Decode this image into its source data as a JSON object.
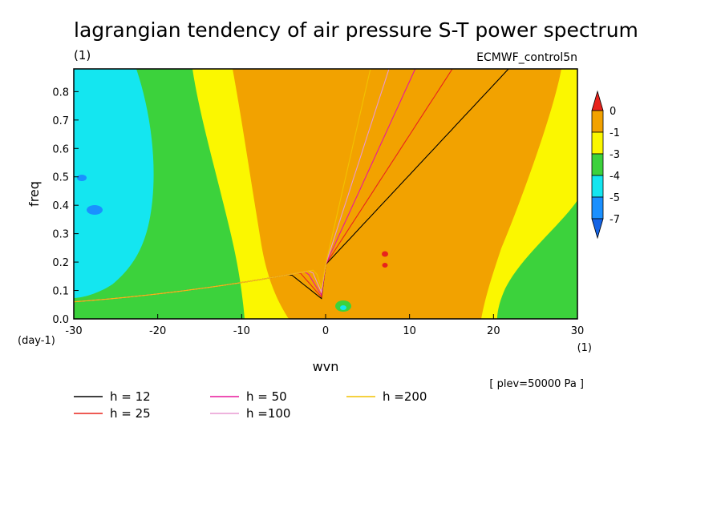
{
  "chart_data": {
    "type": "heatmap",
    "title": "lagrangian tendency of air pressure S-T power spectrum",
    "units_label": "(1)",
    "model_label": "ECMWF_control5n",
    "xlabel": "wvn",
    "x_units": "(1)",
    "ylabel": "freq",
    "y_units": "(day-1)",
    "level_note": "[ plev=50000 Pa ]",
    "xlim": [
      -30,
      30
    ],
    "ylim": [
      0,
      0.88
    ],
    "x_ticks": [
      "-30",
      "-20",
      "-10",
      "0",
      "10",
      "20",
      "30"
    ],
    "y_ticks": [
      "0.0",
      "0.1",
      "0.2",
      "0.3",
      "0.4",
      "0.5",
      "0.6",
      "0.7",
      "0.8"
    ],
    "colorbar": {
      "labels": [
        "0",
        "-1",
        "-3",
        "-4",
        "-5",
        "-7"
      ],
      "colors": [
        "#e8231c",
        "#f2a200",
        "#fbf700",
        "#3cd23c",
        "#14e6f0",
        "#1a90ff",
        "#1464e6"
      ]
    },
    "regions": {
      "cyan": "#14e6f0",
      "green": "#3cd23c",
      "yellow": "#fbf700",
      "orange": "#f2a200",
      "blue": "#1a90ff",
      "red": "#e8231c"
    },
    "series": [
      {
        "name": "h = 12",
        "h": 12,
        "color": "#000000"
      },
      {
        "name": "h = 25",
        "h": 25,
        "color": "#e8231c"
      },
      {
        "name": "h = 50",
        "h": 50,
        "color": "#e8179b"
      },
      {
        "name": "h =100",
        "h": 100,
        "color": "#e89ad2"
      },
      {
        "name": "h =200",
        "h": 200,
        "color": "#f2c200"
      }
    ],
    "legend_placement": "bottom"
  }
}
